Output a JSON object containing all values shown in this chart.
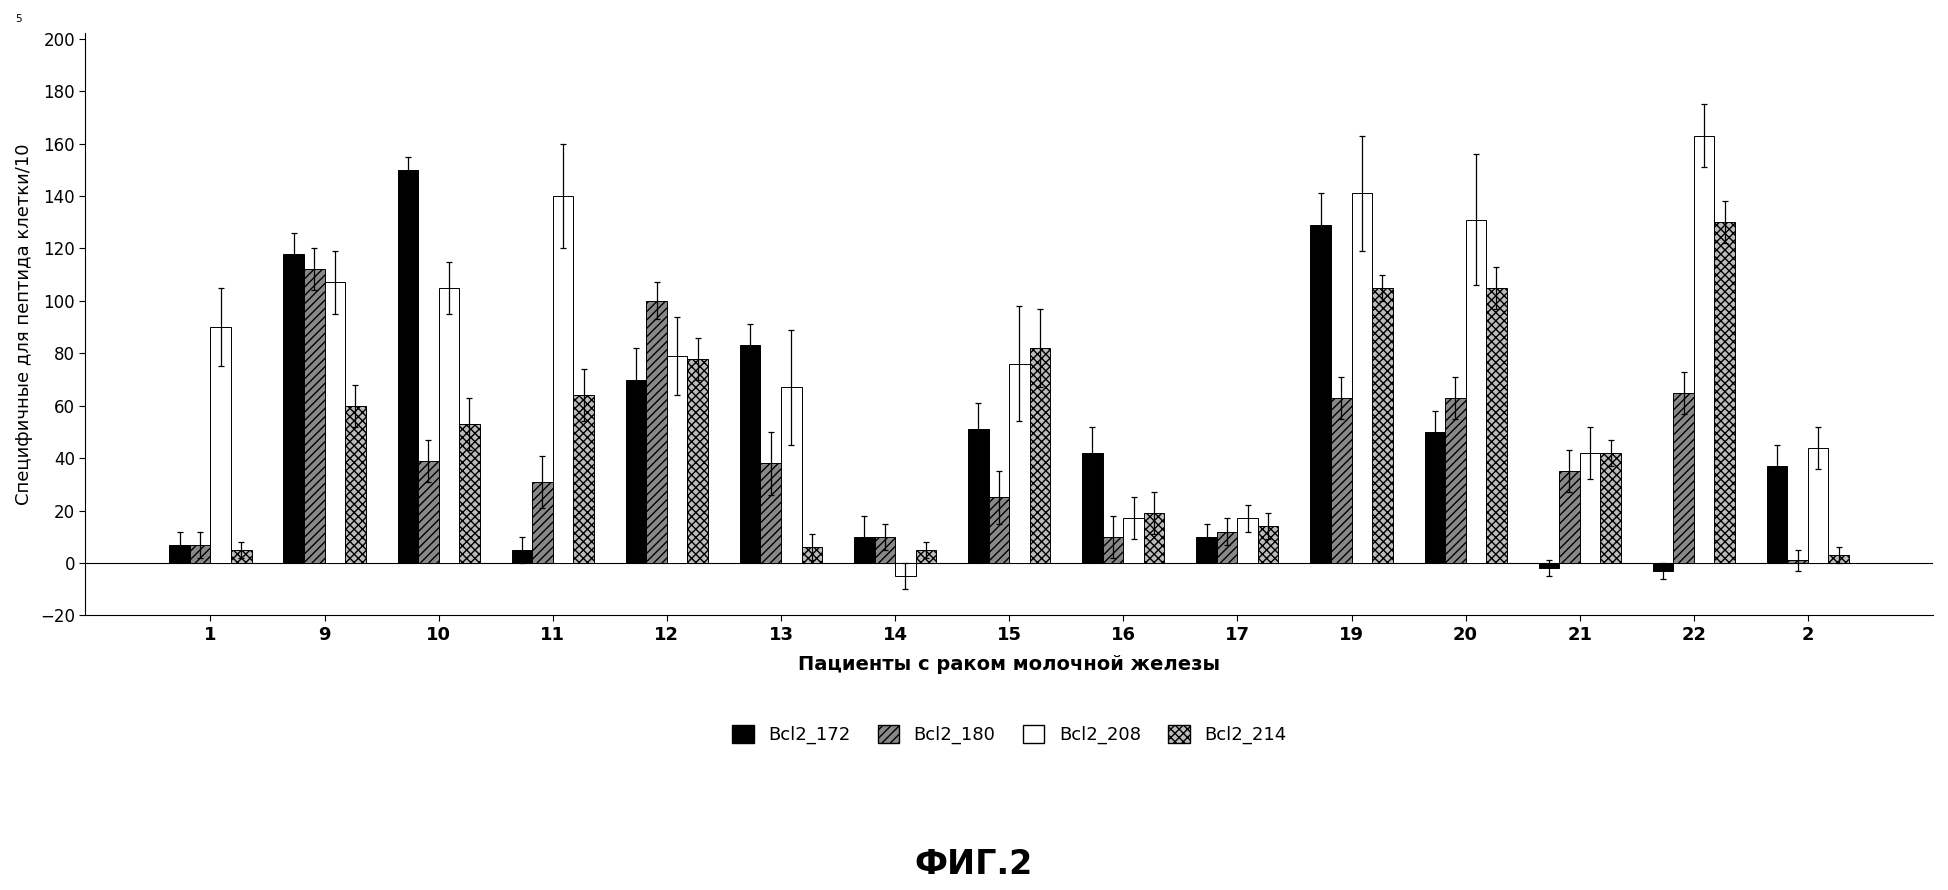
{
  "patients": [
    "1",
    "9",
    "10",
    "11",
    "12",
    "13",
    "14",
    "15",
    "16",
    "17",
    "19",
    "20",
    "21",
    "22",
    "2"
  ],
  "series": {
    "Bcl2_172": {
      "values": [
        7,
        118,
        150,
        5,
        70,
        83,
        10,
        51,
        42,
        10,
        129,
        50,
        -2,
        -3,
        37
      ],
      "errors": [
        5,
        8,
        5,
        5,
        12,
        8,
        8,
        10,
        10,
        5,
        12,
        8,
        3,
        3,
        8
      ],
      "color": "#000000",
      "hatch": ""
    },
    "Bcl2_180": {
      "values": [
        7,
        112,
        39,
        31,
        100,
        38,
        10,
        25,
        10,
        12,
        63,
        63,
        35,
        65,
        1
      ],
      "errors": [
        5,
        8,
        8,
        10,
        7,
        12,
        5,
        10,
        8,
        5,
        8,
        8,
        8,
        8,
        4
      ],
      "color": "#888888",
      "hatch": "////"
    },
    "Bcl2_208": {
      "values": [
        90,
        107,
        105,
        140,
        79,
        67,
        -5,
        76,
        17,
        17,
        141,
        131,
        42,
        163,
        44
      ],
      "errors": [
        15,
        12,
        10,
        20,
        15,
        22,
        5,
        22,
        8,
        5,
        22,
        25,
        10,
        12,
        8
      ],
      "color": "#ffffff",
      "hatch": ""
    },
    "Bcl2_214": {
      "values": [
        5,
        60,
        53,
        64,
        78,
        6,
        5,
        82,
        19,
        14,
        105,
        105,
        42,
        130,
        3
      ],
      "errors": [
        3,
        8,
        10,
        10,
        8,
        5,
        3,
        15,
        8,
        5,
        5,
        8,
        5,
        8,
        3
      ],
      "color": "#bbbbbb",
      "hatch": "xxxx"
    }
  },
  "ylim": [
    -20,
    200
  ],
  "yticks": [
    -20,
    0,
    20,
    40,
    60,
    80,
    100,
    120,
    140,
    160,
    180,
    200
  ],
  "xlabel": "Пациенты с раком молочной железы",
  "ylabel": "Специфичные для пептида клетки/10",
  "ylabel_superscript": "5",
  "title": "ФИГ.2",
  "legend_labels": [
    "Bcl2_172",
    "Bcl2_180",
    "Bcl2_208",
    "Bcl2_214"
  ],
  "bar_width": 0.18,
  "background_color": "#ffffff",
  "figsize": [
    19.48,
    8.9
  ],
  "dpi": 100
}
